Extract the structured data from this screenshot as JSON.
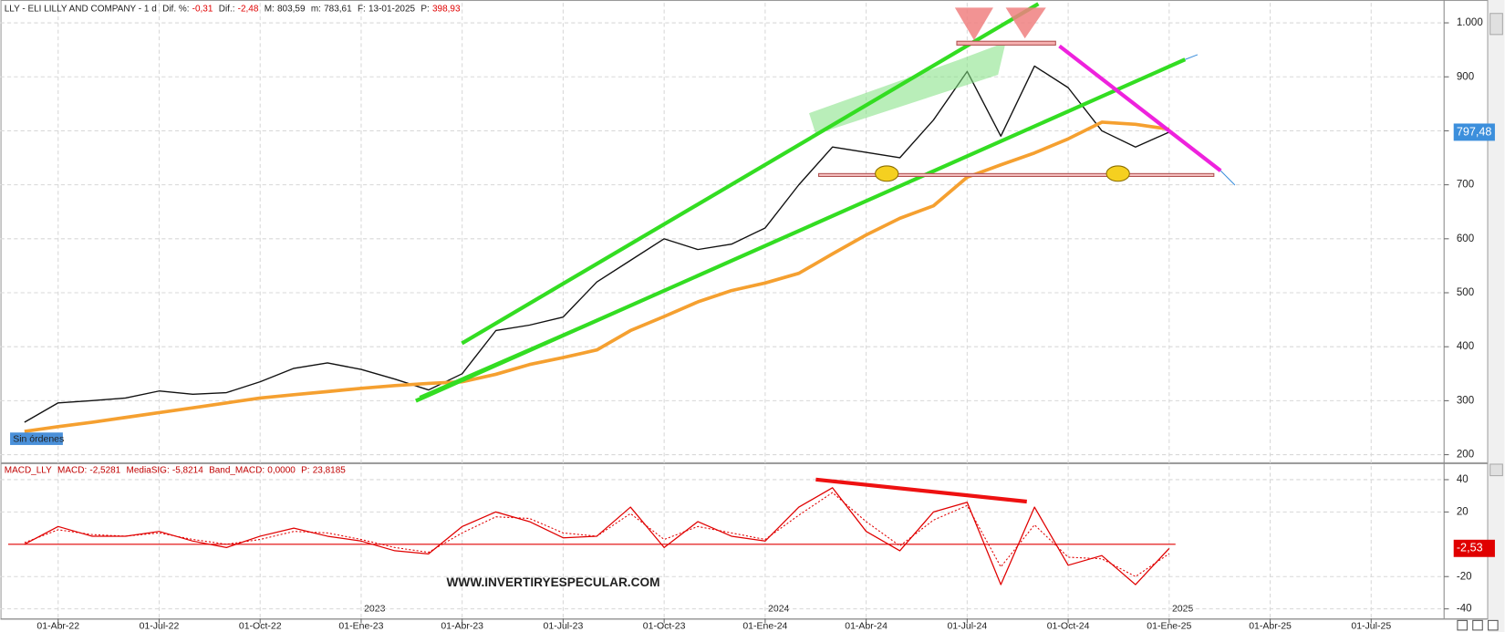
{
  "chart_data": [
    {
      "type": "line",
      "header": {
        "title": "LLY - ELI LILLY AND COMPANY - 1 d",
        "fields": [
          {
            "label": "Dif. %:",
            "value": "-0,31",
            "color": "#e00000"
          },
          {
            "label": "Dif.:",
            "value": "-2,48",
            "color": "#e00000"
          },
          {
            "label": "M:",
            "value": "803,59",
            "color": "#222222"
          },
          {
            "label": "m:",
            "value": "783,61",
            "color": "#222222"
          },
          {
            "label": "F:",
            "value": "13-01-2025",
            "color": "#222222"
          },
          {
            "label": "P:",
            "value": "398,93",
            "color": "#e00000"
          }
        ]
      },
      "series": [
        {
          "color": "#111111",
          "width": 1.3,
          "values": [
            260,
            296,
            300,
            305,
            318,
            312,
            315,
            335,
            360,
            370,
            358,
            340,
            320,
            350,
            430,
            440,
            455,
            520,
            560,
            600,
            580,
            590,
            620,
            700,
            770,
            760,
            750,
            820,
            910,
            790,
            920,
            880,
            800,
            770,
            797.48,
            null,
            null,
            null,
            null,
            null,
            null,
            null,
            null
          ]
        },
        {
          "color": "#f5a030",
          "width": 3.5,
          "values": [
            243,
            252,
            260,
            269,
            278,
            287,
            296,
            305,
            311,
            317,
            323,
            328,
            332,
            335,
            349,
            367,
            380,
            394,
            430,
            456,
            483,
            504,
            518,
            536,
            572,
            607,
            638,
            661,
            714,
            737,
            759,
            785,
            816,
            812,
            803,
            null,
            null,
            null,
            null,
            null,
            null,
            null,
            null
          ]
        }
      ],
      "last_value": {
        "value": 797.48,
        "label": "797,48",
        "color": "#3c8fdc"
      },
      "annotation": "Sin órdenes",
      "ylim": [
        186,
        1037
      ],
      "yticks": [
        200,
        300,
        400,
        500,
        600,
        700,
        800,
        900,
        {
          "value": 1000,
          "label": "1.000"
        }
      ],
      "grid": true
    },
    {
      "type": "line",
      "header": {
        "title": "MACD_LLY",
        "fields": [
          {
            "label": "MACD:",
            "value": "-2,5281",
            "color": "#c00000"
          },
          {
            "label": "MediaSIG:",
            "value": "-5,8214",
            "color": "#c00000"
          },
          {
            "label": "Band_MACD:",
            "value": "0,0000",
            "color": "#c00000"
          },
          {
            "label": "P:",
            "value": "23,8185",
            "color": "#c00000"
          }
        ]
      },
      "categories": [
        null,
        "01-Abr-22",
        null,
        null,
        "01-Jul-22",
        null,
        null,
        "01-Oct-22",
        null,
        null,
        "01-Ene-23",
        null,
        null,
        "01-Abr-23",
        null,
        null,
        "01-Jul-23",
        null,
        null,
        "01-Oct-23",
        null,
        null,
        "01-Ene-24",
        null,
        null,
        "01-Abr-24",
        null,
        null,
        "01-Jul-24",
        null,
        null,
        "01-Oct-24",
        null,
        null,
        "01-Ene-25",
        null,
        null,
        "01-Abr-25",
        null,
        null,
        "01-Jul-25",
        null,
        null
      ],
      "year_labels": [
        null,
        null,
        null,
        null,
        null,
        null,
        null,
        null,
        null,
        null,
        "2023",
        null,
        null,
        null,
        null,
        null,
        null,
        null,
        null,
        null,
        null,
        null,
        "2024",
        null,
        null,
        null,
        null,
        null,
        null,
        null,
        null,
        null,
        null,
        null,
        "2025",
        null,
        null,
        null,
        null,
        null,
        null,
        null,
        null
      ],
      "series": [
        {
          "name": "MACD",
          "color": "#e00000",
          "width": 1.2,
          "dash": false,
          "values": [
            0,
            11,
            5,
            5,
            8,
            2,
            -2,
            5,
            10,
            5,
            2,
            -4,
            -6,
            11,
            20,
            14,
            4,
            5,
            23,
            -2,
            14,
            5,
            2,
            23,
            35,
            8,
            -4,
            20,
            26,
            -25,
            23,
            -13,
            -7,
            -25,
            -2.5281,
            null,
            null,
            null,
            null,
            null,
            null,
            null,
            null
          ]
        },
        {
          "name": "MediaSIG",
          "color": "#e00000",
          "width": 1,
          "dash": true,
          "values": [
            1,
            9,
            6,
            5,
            7,
            3,
            0,
            3,
            8,
            7,
            3,
            -2,
            -5,
            7,
            17,
            16,
            7,
            5,
            19,
            3,
            11,
            7,
            3,
            18,
            32,
            14,
            -1,
            15,
            24,
            -14,
            12,
            -8,
            -9,
            -20,
            -5.8214,
            null,
            null,
            null,
            null,
            null,
            null,
            null,
            null
          ]
        }
      ],
      "hline": 0,
      "last_value": {
        "value": -2.53,
        "label": "-2,53",
        "color": "#e00000"
      },
      "watermark": "WWW.INVERTIRYESPECULAR.COM",
      "ylim": [
        -46,
        49
      ],
      "yticks": [
        40,
        20,
        -20,
        -40
      ],
      "grid": true
    }
  ]
}
